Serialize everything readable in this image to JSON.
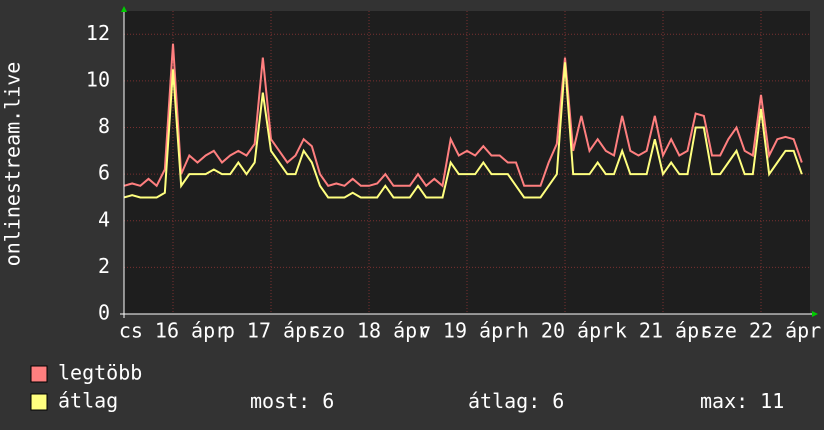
{
  "chart_data": {
    "type": "line",
    "y_label": "onlinestream.live",
    "x": [
      0,
      2,
      4,
      6,
      8,
      10,
      12,
      14,
      16,
      18,
      20,
      22,
      24,
      26,
      28,
      30,
      32,
      34,
      36,
      38,
      40,
      42,
      44,
      46,
      48,
      50,
      52,
      54,
      56,
      58,
      60,
      62,
      64,
      66,
      68,
      70,
      72,
      74,
      76,
      78,
      80,
      82,
      84,
      86,
      88,
      90,
      92,
      94,
      96,
      98,
      100,
      102,
      104,
      106,
      108,
      110,
      112,
      114,
      116,
      118,
      120,
      122,
      124,
      126,
      128,
      130,
      132,
      134,
      136,
      138,
      140,
      142,
      144,
      146,
      148,
      150,
      152,
      154,
      156,
      158,
      160,
      162,
      164,
      166
    ],
    "xlim": [
      0,
      168
    ],
    "xticks": [
      {
        "value": 12,
        "label": "cs 16 ápr"
      },
      {
        "value": 36,
        "label": "p 17 ápr"
      },
      {
        "value": 60,
        "label": "szo 18 ápr"
      },
      {
        "value": 84,
        "label": "v 19 ápr"
      },
      {
        "value": 108,
        "label": "h 20 ápr"
      },
      {
        "value": 132,
        "label": "k 21 ápr"
      },
      {
        "value": 156,
        "label": "sze 22 ápr"
      }
    ],
    "ylim": [
      0,
      13
    ],
    "yticks": [
      0,
      2,
      4,
      6,
      8,
      10,
      12
    ],
    "grid": true,
    "series": [
      {
        "name": "legtöbb",
        "color": "#ff7f7f",
        "values": [
          5.5,
          5.6,
          5.5,
          5.8,
          5.5,
          6.2,
          11.6,
          6,
          6.8,
          6.5,
          6.8,
          7,
          6.5,
          6.8,
          7,
          6.8,
          7.3,
          11,
          7.5,
          7,
          6.5,
          6.8,
          7.5,
          7.2,
          6,
          5.5,
          5.6,
          5.5,
          5.8,
          5.5,
          5.5,
          5.6,
          6,
          5.5,
          5.5,
          5.5,
          6,
          5.5,
          5.8,
          5.5,
          7.5,
          6.8,
          7,
          6.8,
          7.2,
          6.8,
          6.8,
          6.5,
          6.5,
          5.5,
          5.5,
          5.5,
          6.5,
          7.3,
          11,
          7,
          8.5,
          7,
          7.5,
          7,
          6.8,
          8.5,
          7,
          6.8,
          7,
          8.5,
          6.8,
          7.5,
          6.8,
          7,
          8.6,
          8.5,
          6.8,
          6.8,
          7.5,
          8,
          7,
          6.8,
          9.4,
          6.8,
          7.5,
          7.6,
          7.5,
          6.5
        ]
      },
      {
        "name": "átlag",
        "color": "#ffff7f",
        "values": [
          5,
          5.1,
          5,
          5,
          5,
          5.2,
          10.5,
          5.5,
          6,
          6,
          6,
          6.2,
          6,
          6,
          6.5,
          6,
          6.5,
          9.5,
          7,
          6.5,
          6,
          6,
          7,
          6.5,
          5.5,
          5,
          5,
          5,
          5.2,
          5,
          5,
          5,
          5.5,
          5,
          5,
          5,
          5.5,
          5,
          5,
          5,
          6.5,
          6,
          6,
          6,
          6.5,
          6,
          6,
          6,
          5.5,
          5,
          5,
          5,
          5.5,
          6,
          10.8,
          6,
          6,
          6,
          6.5,
          6,
          6,
          7,
          6,
          6,
          6,
          7.5,
          6,
          6.5,
          6,
          6,
          8,
          8,
          6,
          6,
          6.5,
          7,
          6,
          6,
          8.8,
          6,
          6.5,
          7,
          7,
          6
        ]
      }
    ],
    "stats": [
      {
        "label": "most:",
        "value": 6
      },
      {
        "label": "átlag:",
        "value": 6
      },
      {
        "label": "max:",
        "value": 11
      }
    ]
  }
}
